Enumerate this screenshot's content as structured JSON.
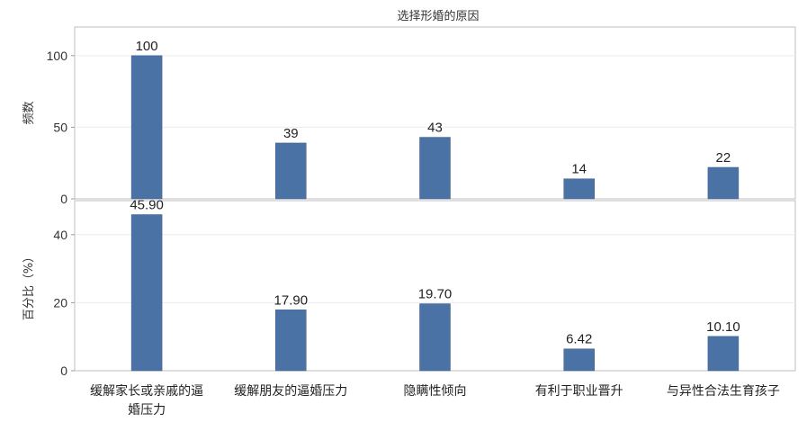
{
  "chart_data": {
    "type": "bar",
    "title": "选择形婚的原因",
    "categories": [
      [
        "缓解家长或亲戚的逼",
        "婚压力"
      ],
      [
        "缓解朋友的逼婚压力"
      ],
      [
        "隐瞒性倾向"
      ],
      [
        "有利于职业晋升"
      ],
      [
        "与异性合法生育孩子"
      ]
    ],
    "bar_color": "#4a72a5",
    "panels": [
      {
        "ylabel": "频数",
        "ylim": [
          0,
          120
        ],
        "yticks": [
          0,
          50,
          100
        ],
        "values": [
          100,
          39,
          43,
          14,
          22
        ],
        "labels": [
          "100",
          "39",
          "43",
          "14",
          "22"
        ]
      },
      {
        "ylabel": "百分比（%）",
        "ylim": [
          0,
          50
        ],
        "yticks": [
          0,
          20,
          40
        ],
        "values": [
          45.9,
          17.9,
          19.7,
          6.42,
          10.1
        ],
        "labels": [
          "45.90",
          "17.90",
          "19.70",
          "6.42",
          "10.10"
        ]
      }
    ]
  }
}
